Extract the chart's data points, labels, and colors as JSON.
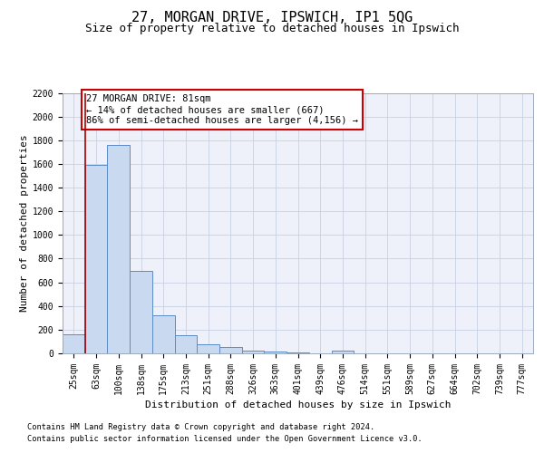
{
  "title": "27, MORGAN DRIVE, IPSWICH, IP1 5QG",
  "subtitle": "Size of property relative to detached houses in Ipswich",
  "xlabel": "Distribution of detached houses by size in Ipswich",
  "ylabel": "Number of detached properties",
  "categories": [
    "25sqm",
    "63sqm",
    "100sqm",
    "138sqm",
    "175sqm",
    "213sqm",
    "251sqm",
    "288sqm",
    "326sqm",
    "363sqm",
    "401sqm",
    "439sqm",
    "476sqm",
    "514sqm",
    "551sqm",
    "589sqm",
    "627sqm",
    "664sqm",
    "702sqm",
    "739sqm",
    "777sqm"
  ],
  "values": [
    160,
    1590,
    1760,
    700,
    320,
    155,
    80,
    50,
    25,
    15,
    5,
    0,
    20,
    0,
    0,
    0,
    0,
    0,
    0,
    0,
    0
  ],
  "bar_color": "#c9d9ef",
  "bar_edge_color": "#5b8cc8",
  "vline_color": "#aa0000",
  "annotation_text": "27 MORGAN DRIVE: 81sqm\n← 14% of detached houses are smaller (667)\n86% of semi-detached houses are larger (4,156) →",
  "annotation_box_color": "#ffffff",
  "annotation_box_edge": "#cc0000",
  "ylim_max": 2200,
  "yticks": [
    0,
    200,
    400,
    600,
    800,
    1000,
    1200,
    1400,
    1600,
    1800,
    2000,
    2200
  ],
  "grid_color": "#c8d0e0",
  "bg_color": "#eef1fa",
  "footer_line1": "Contains HM Land Registry data © Crown copyright and database right 2024.",
  "footer_line2": "Contains public sector information licensed under the Open Government Licence v3.0.",
  "title_fontsize": 11,
  "subtitle_fontsize": 9,
  "ylabel_fontsize": 8,
  "xlabel_fontsize": 8,
  "tick_fontsize": 7,
  "ann_fontsize": 7.5
}
